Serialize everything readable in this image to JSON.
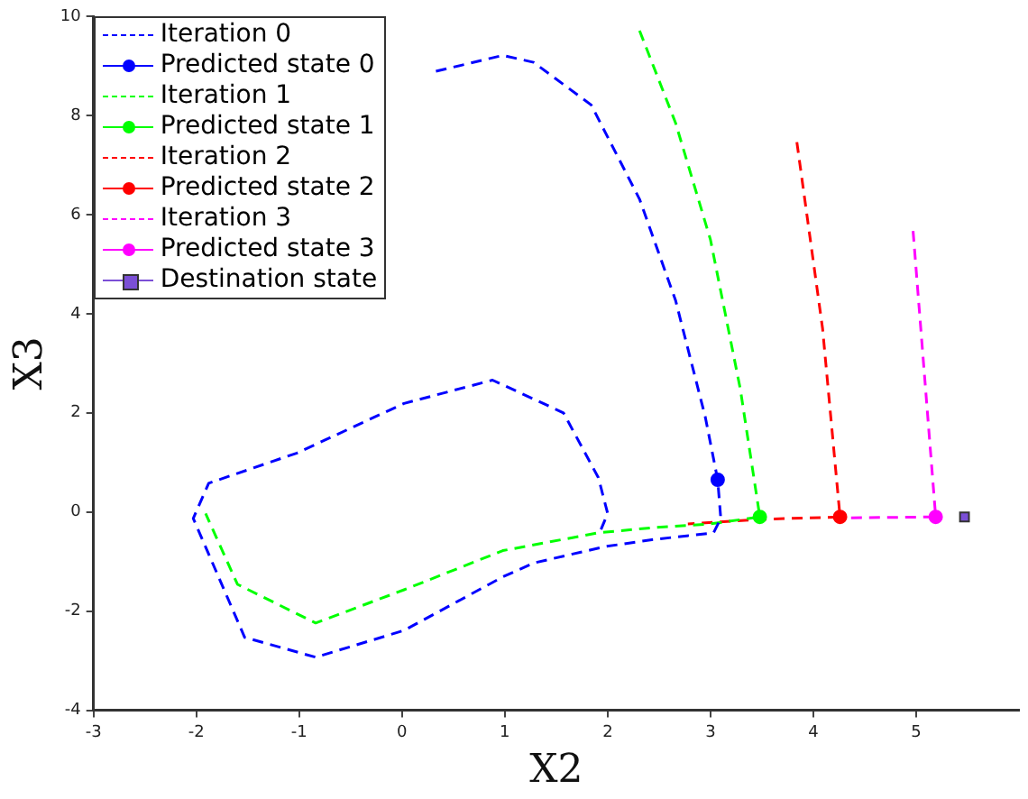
{
  "chart_data": {
    "type": "line",
    "xlabel": "X2",
    "ylabel": "X3",
    "xlim": [
      -3,
      6
    ],
    "xticks": [
      -3,
      -2,
      -1,
      0,
      1,
      2,
      3,
      4,
      5
    ],
    "ylim": [
      -4,
      10
    ],
    "yticks": [
      -4,
      -2,
      0,
      2,
      4,
      6,
      8,
      10
    ],
    "grid": false,
    "legend": "top left",
    "series": [
      {
        "name": "Iteration 0",
        "color": "#0000ff",
        "type": "line",
        "line_style": "dashed",
        "marker": "none",
        "x": [
          0.33,
          0.98,
          1.28,
          1.84,
          2.31,
          2.66,
          2.95,
          3.07,
          3.1,
          3.03,
          2.43,
          1.97,
          1.28,
          0.98,
          0.02,
          -0.84,
          -1.53,
          -2.03,
          -1.88,
          -1.02,
          0.02,
          0.88,
          1.57,
          1.91,
          2.0,
          1.93
        ],
        "values": [
          8.89,
          9.21,
          9.07,
          8.21,
          6.31,
          4.27,
          1.91,
          0.65,
          -0.13,
          -0.42,
          -0.56,
          -0.7,
          -1.03,
          -1.31,
          -2.39,
          -2.93,
          -2.53,
          -0.13,
          0.58,
          1.19,
          2.19,
          2.66,
          2.0,
          0.69,
          -0.03,
          -0.38
        ]
      },
      {
        "name": "Predicted state 0",
        "color": "#0000ff",
        "type": "line",
        "line_style": "solid",
        "marker": "circle",
        "x": [
          3.07
        ],
        "values": [
          0.65
        ]
      },
      {
        "name": "Iteration 1",
        "color": "#00ff00",
        "type": "line",
        "line_style": "dashed",
        "marker": "none",
        "x": [
          2.31,
          2.66,
          3.0,
          3.29,
          3.48,
          3.0,
          2.48,
          1.91,
          0.98,
          0.02,
          -0.84,
          -1.6,
          -1.91
        ],
        "values": [
          9.71,
          7.85,
          5.49,
          2.48,
          -0.1,
          -0.24,
          -0.31,
          -0.42,
          -0.78,
          -1.57,
          -2.24,
          -1.46,
          -0.03
        ]
      },
      {
        "name": "Predicted state 1",
        "color": "#00ff00",
        "type": "line",
        "line_style": "solid",
        "marker": "circle",
        "x": [
          3.48
        ],
        "values": [
          -0.1
        ]
      },
      {
        "name": "Iteration 2",
        "color": "#ff0000",
        "type": "line",
        "line_style": "dashed",
        "marker": "none",
        "x": [
          3.84,
          4.09,
          4.26,
          3.48,
          2.78
        ],
        "values": [
          7.46,
          3.7,
          -0.1,
          -0.15,
          -0.24
        ]
      },
      {
        "name": "Predicted state 2",
        "color": "#ff0000",
        "type": "line",
        "line_style": "solid",
        "marker": "circle",
        "x": [
          4.26
        ],
        "values": [
          -0.1
        ]
      },
      {
        "name": "Iteration 3",
        "color": "#ff00ff",
        "type": "line",
        "line_style": "dashed",
        "marker": "none",
        "x": [
          4.97,
          5.19,
          4.26
        ],
        "values": [
          5.67,
          -0.1,
          -0.12
        ]
      },
      {
        "name": "Predicted state 3",
        "color": "#ff00ff",
        "type": "line",
        "line_style": "solid",
        "marker": "circle",
        "x": [
          5.19
        ],
        "values": [
          -0.1
        ]
      },
      {
        "name": "Destination state",
        "color": "#7b4fd6",
        "type": "line",
        "line_style": "solid",
        "marker": "square",
        "x": [
          5.47
        ],
        "values": [
          -0.1
        ]
      }
    ]
  }
}
